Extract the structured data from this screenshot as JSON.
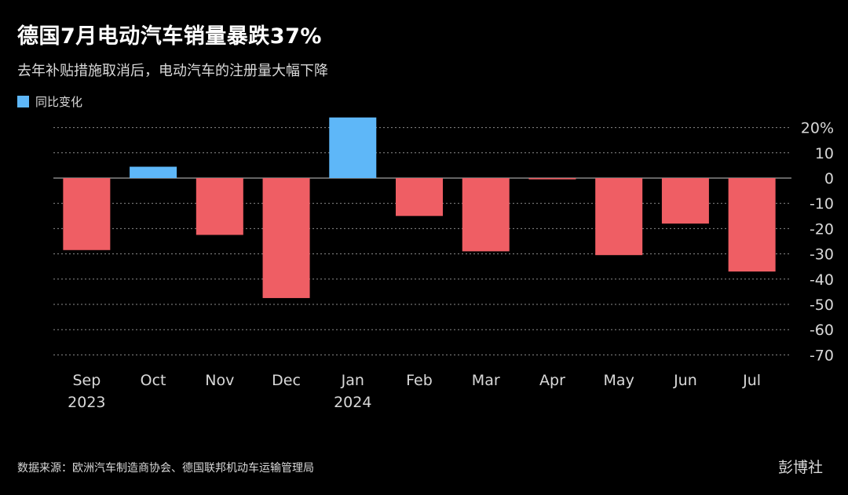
{
  "title": "德国7月电动汽车销量暴跌37%",
  "subtitle": "去年补贴措施取消后，电动汽车的注册量大幅下降",
  "legend_label": "同比变化",
  "source": "数据来源：欧洲汽车制造商协会、德国联邦机动车运输管理局",
  "brand": "彭博社",
  "colors": {
    "positive": "#5eb7f8",
    "negative": "#ef5e64",
    "grid": "#8c8c8c",
    "text": "#d9d9d9"
  },
  "chart_data": {
    "type": "bar",
    "categories": [
      "Sep",
      "Oct",
      "Nov",
      "Dec",
      "Jan",
      "Feb",
      "Mar",
      "Apr",
      "May",
      "Jun",
      "Jul"
    ],
    "year_labels": [
      "2023",
      "",
      "",
      "",
      "2024",
      "",
      "",
      "",
      "",
      "",
      ""
    ],
    "series": [
      {
        "name": "同比变化",
        "values": [
          -28.5,
          4.5,
          -22.5,
          -47.5,
          24,
          -15,
          -29,
          -0.5,
          -30.5,
          -18,
          -37
        ]
      }
    ],
    "ylim": [
      -70,
      24
    ],
    "yticks": [
      20,
      10,
      0,
      -10,
      -20,
      -30,
      -40,
      -50,
      -60,
      -70
    ],
    "ytick_labels": [
      "20%",
      "10",
      "0",
      "-10",
      "-20",
      "-30",
      "-40",
      "-50",
      "-60",
      "-70"
    ],
    "grid": true
  }
}
